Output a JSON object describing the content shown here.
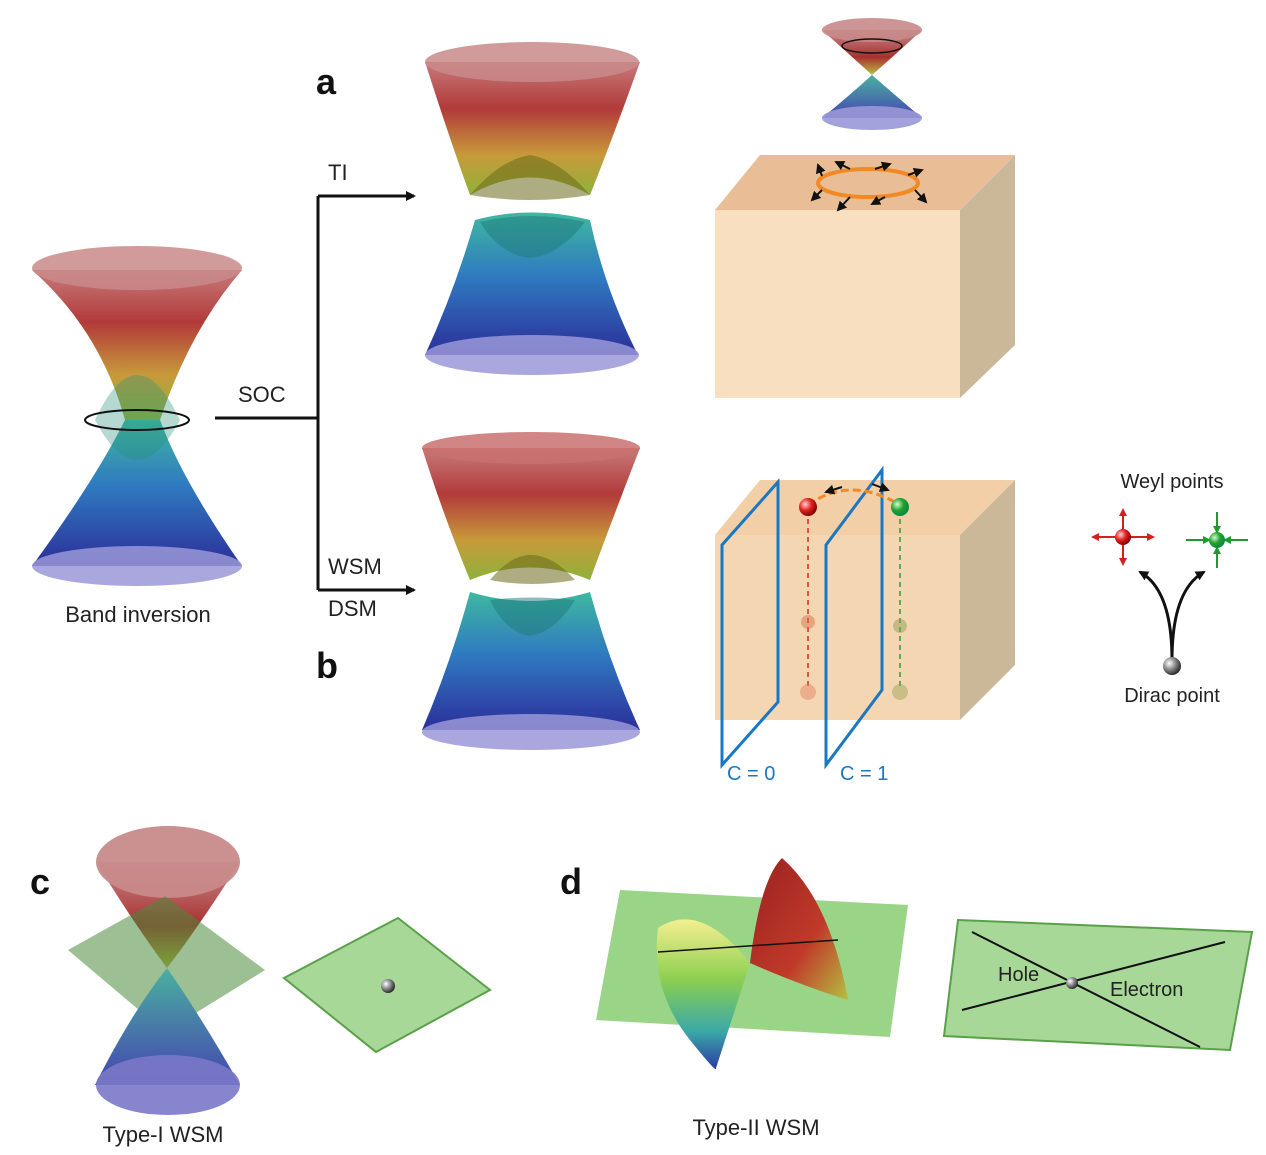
{
  "panels": {
    "a": "a",
    "b": "b",
    "c": "c",
    "d": "d"
  },
  "labels": {
    "band_inversion": "Band inversion",
    "soc": "SOC",
    "ti": "TI",
    "wsm": "WSM",
    "dsm": "DSM",
    "weyl_points": "Weyl points",
    "dirac_point": "Dirac point",
    "c0": "C = 0",
    "c1": "C = 1",
    "type1": "Type-I WSM",
    "type2": "Type-II  WSM",
    "hole": "Hole",
    "electron": "Electron"
  },
  "colors": {
    "cone_top": "#c96a6a",
    "cone_bottom": "#3a3fa8",
    "slab": "#f6d6b0",
    "plane_green": "#8fcf7a",
    "chern_plane": "#1a78c2",
    "weyl_plus": "#d41f1f",
    "weyl_minus": "#1e9b2e",
    "fermi_arc": "#f08a24"
  }
}
